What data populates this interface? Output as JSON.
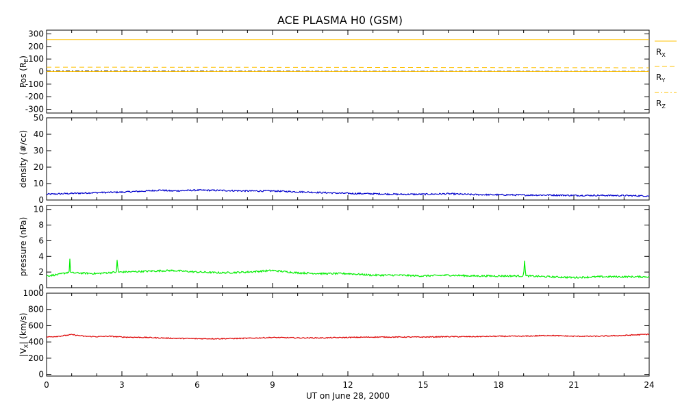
{
  "title": "ACE PLASMA H0 (GSM)",
  "xlabel": "UT on June 28, 2000",
  "x_ticks": [
    "0",
    "3",
    "6",
    "9",
    "12",
    "15",
    "18",
    "21",
    "24"
  ],
  "chart_data": [
    {
      "type": "line",
      "ylabel_main": "Pos (R",
      "ylabel_sub": "E",
      "ylabel_end": ")",
      "ylim": [
        -330,
        330
      ],
      "y_ticks": [
        300,
        200,
        100,
        0,
        -100,
        -200,
        -300
      ],
      "x": [
        0,
        24
      ],
      "legend": [
        {
          "label": "R",
          "sub": "X",
          "style": "solid"
        },
        {
          "label": "R",
          "sub": "Y",
          "style": "dashed"
        },
        {
          "label": "R",
          "sub": "Z",
          "style": "dashdot"
        }
      ],
      "series": [
        {
          "name": "RX",
          "color": "#ffc000",
          "style": "solid",
          "values": [
            255,
            255
          ]
        },
        {
          "name": "RY",
          "color": "#ffc000",
          "style": "dashed",
          "x": [
            0,
            12,
            24
          ],
          "values": [
            35,
            33,
            30
          ]
        },
        {
          "name": "RZ",
          "color": "#000000",
          "style": "dashdot",
          "x": [
            0,
            12,
            24
          ],
          "values": [
            5,
            3,
            2
          ]
        },
        {
          "name": "zero",
          "color": "#ffc000",
          "style": "solid",
          "x": [
            0,
            24
          ],
          "values": [
            0,
            0
          ]
        }
      ]
    },
    {
      "type": "line",
      "ylabel_main": "density (#/cc)",
      "ylim": [
        0,
        50
      ],
      "y_ticks": [
        50,
        40,
        30,
        20,
        10,
        0
      ],
      "series": [
        {
          "name": "density",
          "color": "#0000cc",
          "x": [
            0,
            1,
            2,
            3,
            4,
            4.5,
            5,
            6,
            7,
            8,
            9,
            10,
            11,
            12,
            13,
            14,
            15,
            16,
            17,
            18,
            19,
            20,
            21,
            22,
            23,
            24
          ],
          "values": [
            3.5,
            4.0,
            4.5,
            4.8,
            5.5,
            6.0,
            5.5,
            6.0,
            5.8,
            5.5,
            5.5,
            5.0,
            4.5,
            4.0,
            3.8,
            3.5,
            3.5,
            3.8,
            3.3,
            3.2,
            3.0,
            3.0,
            2.8,
            2.8,
            2.7,
            2.5
          ]
        }
      ]
    },
    {
      "type": "line",
      "ylabel_main": "pressure (nPa)",
      "ylim": [
        0,
        10.5
      ],
      "y_ticks": [
        10,
        8,
        6,
        4,
        2,
        0
      ],
      "series": [
        {
          "name": "pressure",
          "color": "#00ee00",
          "x": [
            0,
            0.5,
            0.9,
            0.92,
            0.94,
            1,
            2,
            2.8,
            2.82,
            2.84,
            3,
            4,
            5,
            6,
            7,
            8,
            9,
            10,
            11,
            12,
            13,
            14,
            15,
            16,
            17,
            18,
            19,
            19.05,
            19.07,
            19.09,
            20,
            21,
            22,
            23,
            24
          ],
          "values": [
            1.5,
            1.7,
            2.0,
            4.8,
            2.0,
            1.9,
            1.8,
            2.0,
            5.3,
            2.0,
            2.0,
            2.1,
            2.2,
            2.0,
            1.9,
            2.0,
            2.2,
            1.9,
            1.8,
            1.8,
            1.6,
            1.6,
            1.5,
            1.6,
            1.5,
            1.5,
            1.5,
            4.3,
            1.5,
            1.5,
            1.4,
            1.3,
            1.4,
            1.4,
            1.4
          ]
        }
      ]
    },
    {
      "type": "line",
      "ylabel_pre": "|V",
      "ylabel_sub": "X",
      "ylabel_end": "| (km/s)",
      "ylim": [
        -20,
        1000
      ],
      "y_ticks": [
        1000,
        800,
        600,
        400,
        200,
        0
      ],
      "series": [
        {
          "name": "Vx",
          "color": "#dd0000",
          "x": [
            0,
            0.5,
            1,
            1.5,
            2,
            2.5,
            3,
            4,
            5,
            6,
            7,
            8,
            9,
            10,
            11,
            12,
            13,
            14,
            15,
            16,
            17,
            18,
            19,
            20,
            21,
            22,
            23,
            24
          ],
          "values": [
            460,
            470,
            490,
            470,
            465,
            470,
            460,
            455,
            445,
            440,
            440,
            445,
            455,
            450,
            450,
            455,
            460,
            460,
            460,
            465,
            465,
            470,
            470,
            480,
            470,
            470,
            480,
            495
          ]
        }
      ]
    }
  ]
}
